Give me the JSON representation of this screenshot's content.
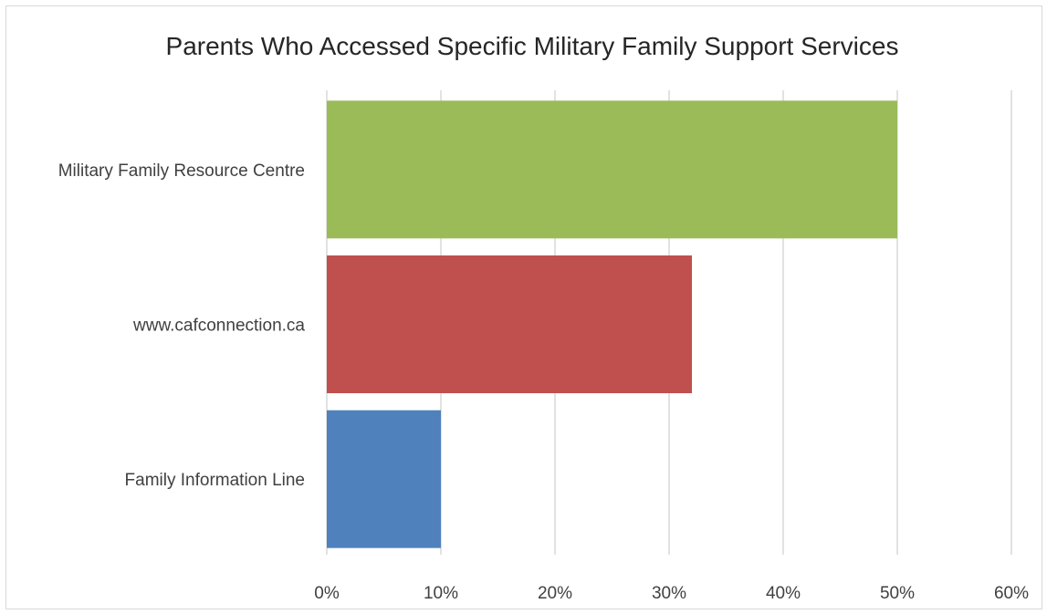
{
  "chart_data": {
    "type": "bar",
    "orientation": "horizontal",
    "title": "Parents Who Accessed Specific Military Family Support Services",
    "categories": [
      "Military Family Resource Centre",
      "www.cafconnection.ca",
      "Family Information Line"
    ],
    "values": [
      0.5,
      0.32,
      0.1
    ],
    "colors": [
      "#9BBB59",
      "#C0504D",
      "#4F81BD"
    ],
    "xlim": [
      0,
      0.6
    ],
    "xticks": [
      0,
      0.1,
      0.2,
      0.3,
      0.4,
      0.5,
      0.6
    ],
    "xtick_labels": [
      "0%",
      "10%",
      "20%",
      "30%",
      "40%",
      "50%",
      "60%"
    ],
    "grid": "vertical",
    "legend": "none"
  }
}
